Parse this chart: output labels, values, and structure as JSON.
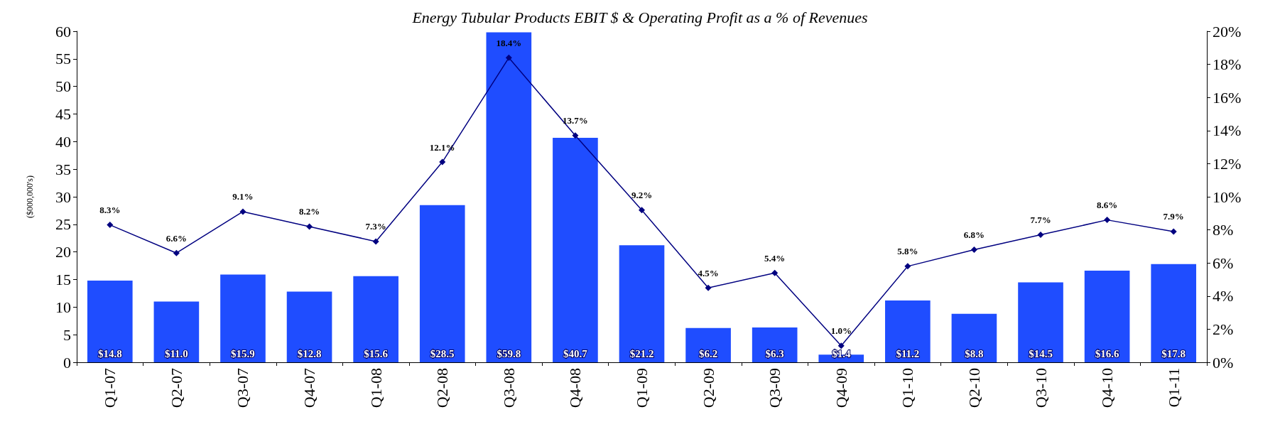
{
  "chart_data": {
    "type": "bar",
    "title": "Energy Tubular Products EBIT $ & Operating Profit as a % of Revenues",
    "ylabel": "($000,000's)",
    "categories": [
      "Q1-07",
      "Q2-07",
      "Q3-07",
      "Q4-07",
      "Q1-08",
      "Q2-08",
      "Q3-08",
      "Q4-08",
      "Q1-09",
      "Q2-09",
      "Q3-09",
      "Q4-09",
      "Q1-10",
      "Q2-10",
      "Q3-10",
      "Q4-10",
      "Q1-11"
    ],
    "series": [
      {
        "color": "#1f4dff",
        "values": [
          14.8,
          11.0,
          15.9,
          12.8,
          15.6,
          28.5,
          59.8,
          40.7,
          21.2,
          6.2,
          6.3,
          1.4,
          11.2,
          8.8,
          14.5,
          16.6,
          17.8
        ],
        "value_labels": [
          "$14.8",
          "$11.0",
          "$15.9",
          "$12.8",
          "$15.6",
          "$28.5",
          "$59.8",
          "$40.7",
          "$21.2",
          "$6.2",
          "$6.3",
          "$1.4",
          "$11.2",
          "$8.8",
          "$14.5",
          "$16.6",
          "$17.8"
        ]
      },
      {
        "type": "line",
        "axis": "y2",
        "color": "#000080",
        "marker": "diamond",
        "values": [
          8.3,
          6.6,
          9.1,
          8.2,
          7.3,
          12.1,
          18.4,
          13.7,
          9.2,
          4.5,
          5.4,
          1.0,
          5.8,
          6.8,
          7.7,
          8.6,
          7.9
        ],
        "value_labels": [
          "8.3%",
          "6.6%",
          "9.1%",
          "8.2%",
          "7.3%",
          "12.1%",
          "18.4%",
          "13.7%",
          "9.2%",
          "4.5%",
          "5.4%",
          "1.0%",
          "5.8%",
          "6.8%",
          "7.7%",
          "8.6%",
          "7.9%"
        ]
      }
    ],
    "ylim": [
      0,
      60
    ],
    "yticks": [
      0,
      5,
      10,
      15,
      20,
      25,
      30,
      35,
      40,
      45,
      50,
      55,
      60
    ],
    "y2lim": [
      0,
      20
    ],
    "y2ticks": [
      {
        "value": 0,
        "label": "0%"
      },
      {
        "value": 2,
        "label": "2%"
      },
      {
        "value": 4,
        "label": "4%"
      },
      {
        "value": 6,
        "label": "6%"
      },
      {
        "value": 8,
        "label": "8%"
      },
      {
        "value": 10,
        "label": "10%"
      },
      {
        "value": 12,
        "label": "12%"
      },
      {
        "value": 14,
        "label": "14%"
      },
      {
        "value": 16,
        "label": "16%"
      },
      {
        "value": 18,
        "label": "18%"
      },
      {
        "value": 20,
        "label": "20%"
      }
    ],
    "grid": false
  }
}
